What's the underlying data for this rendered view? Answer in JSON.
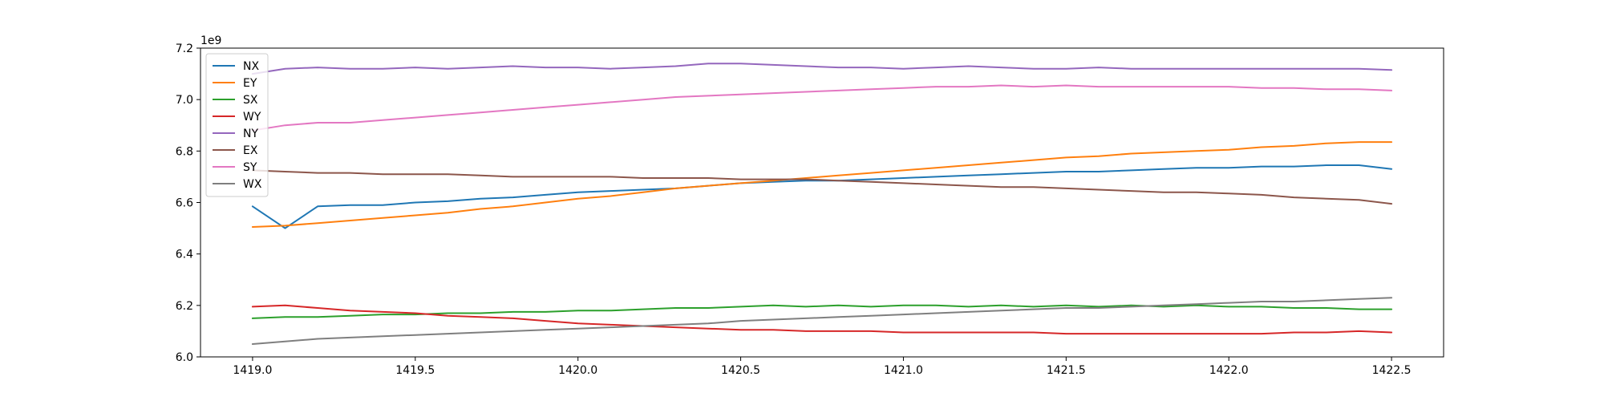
{
  "chart_data": {
    "type": "line",
    "title": "",
    "xlabel": "",
    "ylabel": "",
    "y_offset_text": "1e9",
    "xlim": [
      1418.84,
      1422.66
    ],
    "ylim": [
      6.0,
      7.2
    ],
    "xticks": [
      1419.0,
      1419.5,
      1420.0,
      1420.5,
      1421.0,
      1421.5,
      1422.0,
      1422.5
    ],
    "xtick_labels": [
      "1419.0",
      "1419.5",
      "1420.0",
      "1420.5",
      "1421.0",
      "1421.5",
      "1422.0",
      "1422.5"
    ],
    "yticks": [
      6.0,
      6.2,
      6.4,
      6.6,
      6.8,
      7.0,
      7.2
    ],
    "ytick_labels": [
      "6.0",
      "6.2",
      "6.4",
      "6.6",
      "6.8",
      "7.0",
      "7.2"
    ],
    "grid": false,
    "legend_position": "top-left",
    "x": [
      1419.0,
      1419.1,
      1419.2,
      1419.3,
      1419.4,
      1419.5,
      1419.6,
      1419.7,
      1419.8,
      1419.9,
      1420.0,
      1420.1,
      1420.2,
      1420.3,
      1420.4,
      1420.5,
      1420.6,
      1420.7,
      1420.8,
      1420.9,
      1421.0,
      1421.1,
      1421.2,
      1421.3,
      1421.4,
      1421.5,
      1421.6,
      1421.7,
      1421.8,
      1421.9,
      1422.0,
      1422.1,
      1422.2,
      1422.3,
      1422.4,
      1422.5
    ],
    "series": [
      {
        "name": "NX",
        "color": "#1f77b4",
        "values": [
          6.585,
          6.5,
          6.585,
          6.59,
          6.59,
          6.6,
          6.605,
          6.615,
          6.62,
          6.63,
          6.64,
          6.645,
          6.65,
          6.655,
          6.665,
          6.675,
          6.68,
          6.685,
          6.685,
          6.69,
          6.695,
          6.7,
          6.705,
          6.71,
          6.715,
          6.72,
          6.72,
          6.725,
          6.73,
          6.735,
          6.735,
          6.74,
          6.74,
          6.745,
          6.745,
          6.73
        ]
      },
      {
        "name": "EY",
        "color": "#ff7f0e",
        "values": [
          6.505,
          6.51,
          6.52,
          6.53,
          6.54,
          6.55,
          6.56,
          6.575,
          6.585,
          6.6,
          6.615,
          6.625,
          6.64,
          6.655,
          6.665,
          6.675,
          6.685,
          6.695,
          6.705,
          6.715,
          6.725,
          6.735,
          6.745,
          6.755,
          6.765,
          6.775,
          6.78,
          6.79,
          6.795,
          6.8,
          6.805,
          6.815,
          6.82,
          6.83,
          6.835,
          6.835
        ]
      },
      {
        "name": "SX",
        "color": "#2ca02c",
        "values": [
          6.15,
          6.155,
          6.155,
          6.16,
          6.165,
          6.165,
          6.17,
          6.17,
          6.175,
          6.175,
          6.18,
          6.18,
          6.185,
          6.19,
          6.19,
          6.195,
          6.2,
          6.195,
          6.2,
          6.195,
          6.2,
          6.2,
          6.195,
          6.2,
          6.195,
          6.2,
          6.195,
          6.2,
          6.195,
          6.2,
          6.195,
          6.195,
          6.19,
          6.19,
          6.185,
          6.185
        ]
      },
      {
        "name": "WY",
        "color": "#d62728",
        "values": [
          6.195,
          6.2,
          6.19,
          6.18,
          6.175,
          6.17,
          6.16,
          6.155,
          6.15,
          6.14,
          6.13,
          6.125,
          6.12,
          6.115,
          6.11,
          6.105,
          6.105,
          6.1,
          6.1,
          6.1,
          6.095,
          6.095,
          6.095,
          6.095,
          6.095,
          6.09,
          6.09,
          6.09,
          6.09,
          6.09,
          6.09,
          6.09,
          6.095,
          6.095,
          6.1,
          6.095
        ]
      },
      {
        "name": "NY",
        "color": "#9467bd",
        "values": [
          7.1,
          7.12,
          7.125,
          7.12,
          7.12,
          7.125,
          7.12,
          7.125,
          7.13,
          7.125,
          7.125,
          7.12,
          7.125,
          7.13,
          7.14,
          7.14,
          7.135,
          7.13,
          7.125,
          7.125,
          7.12,
          7.125,
          7.13,
          7.125,
          7.12,
          7.12,
          7.125,
          7.12,
          7.12,
          7.12,
          7.12,
          7.12,
          7.12,
          7.12,
          7.12,
          7.115
        ]
      },
      {
        "name": "EX",
        "color": "#8c564b",
        "values": [
          6.725,
          6.72,
          6.715,
          6.715,
          6.71,
          6.71,
          6.71,
          6.705,
          6.7,
          6.7,
          6.7,
          6.7,
          6.695,
          6.695,
          6.695,
          6.69,
          6.69,
          6.69,
          6.685,
          6.68,
          6.675,
          6.67,
          6.665,
          6.66,
          6.66,
          6.655,
          6.65,
          6.645,
          6.64,
          6.64,
          6.635,
          6.63,
          6.62,
          6.615,
          6.61,
          6.595
        ]
      },
      {
        "name": "SY",
        "color": "#e377c2",
        "values": [
          6.88,
          6.9,
          6.91,
          6.91,
          6.92,
          6.93,
          6.94,
          6.95,
          6.96,
          6.97,
          6.98,
          6.99,
          7.0,
          7.01,
          7.015,
          7.02,
          7.025,
          7.03,
          7.035,
          7.04,
          7.045,
          7.05,
          7.05,
          7.055,
          7.05,
          7.055,
          7.05,
          7.05,
          7.05,
          7.05,
          7.05,
          7.045,
          7.045,
          7.04,
          7.04,
          7.035
        ]
      },
      {
        "name": "WX",
        "color": "#7f7f7f",
        "values": [
          6.05,
          6.06,
          6.07,
          6.075,
          6.08,
          6.085,
          6.09,
          6.095,
          6.1,
          6.105,
          6.11,
          6.115,
          6.12,
          6.125,
          6.13,
          6.14,
          6.145,
          6.15,
          6.155,
          6.16,
          6.165,
          6.17,
          6.175,
          6.18,
          6.185,
          6.19,
          6.19,
          6.195,
          6.2,
          6.205,
          6.21,
          6.215,
          6.215,
          6.22,
          6.225,
          6.23
        ]
      }
    ]
  }
}
